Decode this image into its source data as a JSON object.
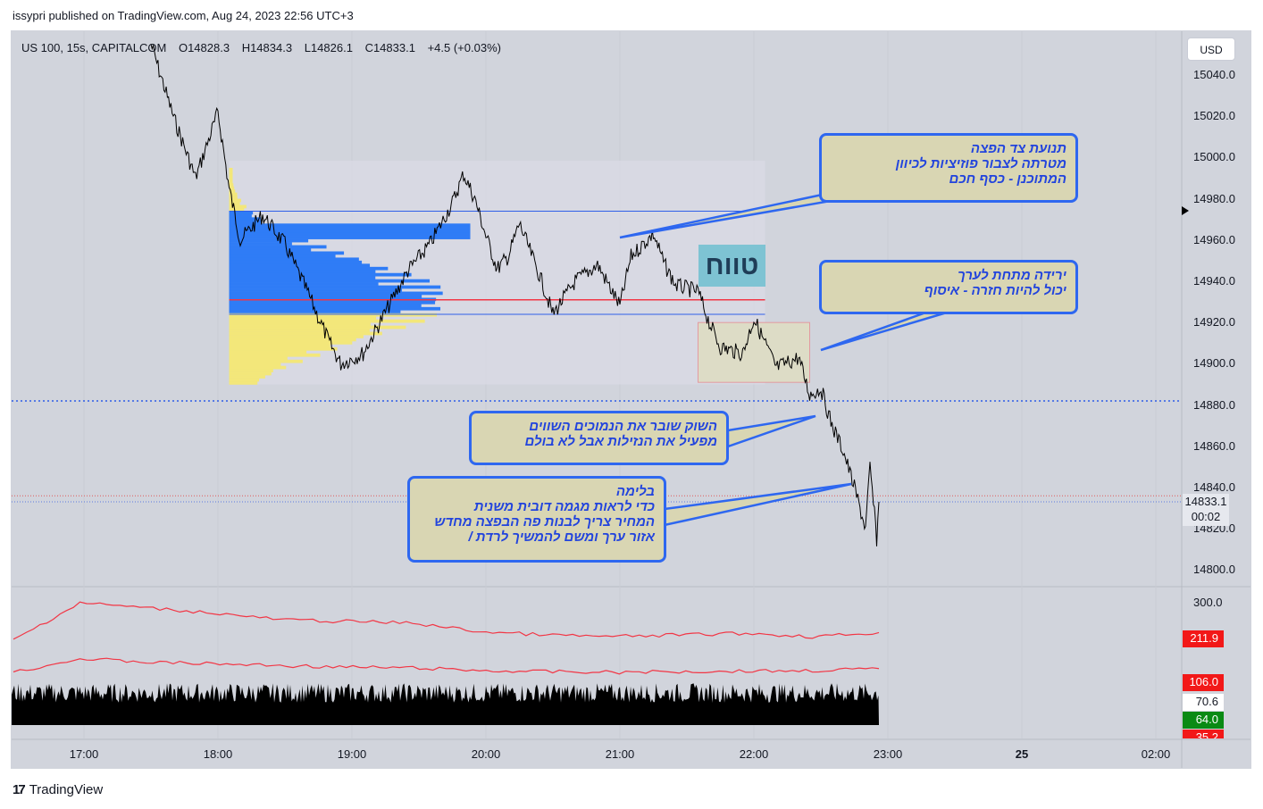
{
  "header": {
    "published": "issypri published on TradingView.com, Aug 24, 2023 22:56 UTC+3"
  },
  "legend": {
    "symbol": "US 100, 15s, CAPITALCOM",
    "open": "O14828.3",
    "high": "H14834.3",
    "low": "L14826.1",
    "close": "C14833.1",
    "change": "+4.5 (+0.03%)"
  },
  "currency_button": "USD",
  "price_ticks": [
    "15040.0",
    "15020.0",
    "15000.0",
    "14980.0",
    "14960.0",
    "14940.0",
    "14920.0",
    "14900.0",
    "14880.0",
    "14860.0",
    "14840.0",
    "14820.0",
    "14800.0"
  ],
  "last_price_tag": {
    "price": "14833.1",
    "countdown": "00:02",
    "color": "#e6e8ee"
  },
  "time_ticks": [
    {
      "label": "17:00",
      "bold": false
    },
    {
      "label": "18:00",
      "bold": false
    },
    {
      "label": "19:00",
      "bold": false
    },
    {
      "label": "20:00",
      "bold": false
    },
    {
      "label": "21:00",
      "bold": false
    },
    {
      "label": "22:00",
      "bold": false
    },
    {
      "label": "23:00",
      "bold": false
    },
    {
      "label": "25",
      "bold": true
    },
    {
      "label": "02:00",
      "bold": false
    }
  ],
  "indicator": {
    "scale_label": "300.0",
    "tags": [
      {
        "value": "211.9",
        "bg": "#f21818",
        "fg": "#ffffff"
      },
      {
        "value": "106.0",
        "bg": "#f21818",
        "fg": "#ffffff"
      },
      {
        "value": "70.6",
        "bg": "#ffffff",
        "fg": "#131722"
      },
      {
        "value": "64.0",
        "bg": "#0a8a14",
        "fg": "#ffffff"
      },
      {
        "value": "35.2",
        "bg": "#f21818",
        "fg": "#ffffff"
      }
    ]
  },
  "annotations": {
    "range_label": "טווח",
    "callout1": [
      "תנועת צד הפצה",
      "מטרתה לצבור פוזיציות לכיוון",
      "המתוכנן - כסף חכם"
    ],
    "callout2": [
      "ירידה מתחת לערך",
      "יכול להיות חזרה - איסוף"
    ],
    "callout3": [
      "השוק שובר את הנמוכים השווים",
      "מפעיל את הנזילות אבל לא בולם"
    ],
    "callout4": [
      "בלימה",
      "כדי לראות מגמה דובית משנית",
      "המחיר צריך לבנות פה הבפצה מחדש",
      "אזור ערך ומשם להמשיך לרדת /"
    ]
  },
  "branding": {
    "logo_text": "TradingView",
    "logo_mark": "17"
  },
  "colors": {
    "price_line": "#000000",
    "volume_profile_value_area": "#2f7cf6",
    "volume_profile_outside": "#f3e77a",
    "poc_line": "#f23645",
    "callout_border": "#2e67f0",
    "callout_fill": "#d9d6b3",
    "indicator_line": "#f23645",
    "dotted_blue": "#2e5ce6"
  },
  "chart_data": {
    "type": "line",
    "title": "",
    "x_unit": "time (Aug 24, 2023 UTC+3)",
    "price_range": [
      14790,
      15050
    ],
    "price_path": [
      {
        "t": "17:30",
        "p": 15055
      },
      {
        "t": "17:40",
        "p": 15020
      },
      {
        "t": "17:50",
        "p": 14990
      },
      {
        "t": "18:00",
        "p": 15022
      },
      {
        "t": "18:05",
        "p": 14985
      },
      {
        "t": "18:10",
        "p": 14960
      },
      {
        "t": "18:20",
        "p": 14972
      },
      {
        "t": "18:30",
        "p": 14958
      },
      {
        "t": "18:40",
        "p": 14935
      },
      {
        "t": "18:50",
        "p": 14910
      },
      {
        "t": "18:55",
        "p": 14900
      },
      {
        "t": "19:05",
        "p": 14905
      },
      {
        "t": "19:15",
        "p": 14925
      },
      {
        "t": "19:25",
        "p": 14945
      },
      {
        "t": "19:35",
        "p": 14958
      },
      {
        "t": "19:45",
        "p": 14978
      },
      {
        "t": "19:50",
        "p": 14992
      },
      {
        "t": "19:55",
        "p": 14980
      },
      {
        "t": "20:00",
        "p": 14962
      },
      {
        "t": "20:05",
        "p": 14946
      },
      {
        "t": "20:10",
        "p": 14952
      },
      {
        "t": "20:15",
        "p": 14968
      },
      {
        "t": "20:25",
        "p": 14940
      },
      {
        "t": "20:30",
        "p": 14924
      },
      {
        "t": "20:40",
        "p": 14940
      },
      {
        "t": "20:50",
        "p": 14948
      },
      {
        "t": "21:00",
        "p": 14928
      },
      {
        "t": "21:05",
        "p": 14952
      },
      {
        "t": "21:15",
        "p": 14963
      },
      {
        "t": "21:20",
        "p": 14948
      },
      {
        "t": "21:25",
        "p": 14938
      },
      {
        "t": "21:35",
        "p": 14935
      },
      {
        "t": "21:40",
        "p": 14920
      },
      {
        "t": "21:45",
        "p": 14908
      },
      {
        "t": "21:55",
        "p": 14905
      },
      {
        "t": "22:00",
        "p": 14922
      },
      {
        "t": "22:10",
        "p": 14898
      },
      {
        "t": "22:20",
        "p": 14903
      },
      {
        "t": "22:25",
        "p": 14885
      },
      {
        "t": "22:30",
        "p": 14888
      },
      {
        "t": "22:35",
        "p": 14870
      },
      {
        "t": "22:40",
        "p": 14858
      },
      {
        "t": "22:45",
        "p": 14840
      },
      {
        "t": "22:50",
        "p": 14820
      },
      {
        "t": "22:52",
        "p": 14850
      },
      {
        "t": "22:55",
        "p": 14815
      },
      {
        "t": "22:56",
        "p": 14833.1
      }
    ],
    "volume_profile": {
      "range": [
        14890,
        14995
      ],
      "value_area": [
        14924,
        14974
      ],
      "poc": 14931,
      "value_area_high_line": 14974,
      "value_area_low_line": 14924
    },
    "range_box": {
      "from": "21:35",
      "to": "22:25",
      "high": 14920,
      "low": 14891
    },
    "horizontal_levels": [
      {
        "name": "dotted-blue",
        "price": 14882
      },
      {
        "name": "dotted-red",
        "price": 14836
      }
    ],
    "indicator_series": [
      {
        "name": "upper",
        "values": [
          190,
          300,
          285,
          270,
          250,
          245,
          240,
          215,
          205,
          200,
          205,
          210,
          200,
          212
        ]
      },
      {
        "name": "lower",
        "values": [
          95,
          135,
          125,
          120,
          115,
          110,
          108,
          100,
          97,
          95,
          97,
          99,
          100,
          106
        ]
      }
    ]
  }
}
